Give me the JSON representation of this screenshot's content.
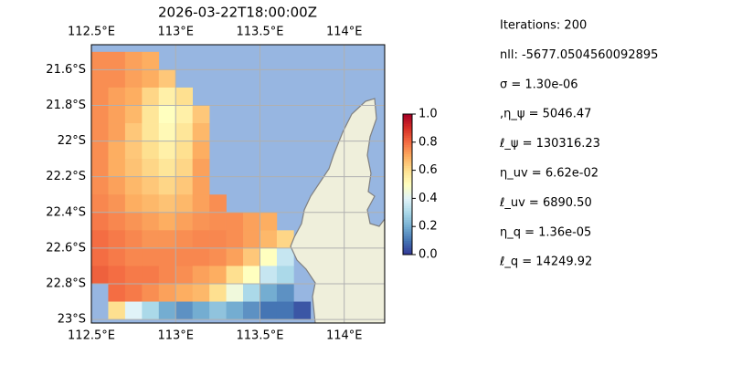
{
  "chart_data": {
    "type": "heatmap",
    "title": "2026-03-22T18:00:00Z",
    "colormap": "RdYlBu_r",
    "x": [
      112.5,
      112.6,
      112.7,
      112.8,
      112.9,
      113.0,
      113.1,
      113.2,
      113.3,
      113.4,
      113.5,
      113.6,
      113.7,
      113.8
    ],
    "y": [
      21.5,
      21.6,
      21.7,
      21.8,
      21.9,
      22.0,
      22.1,
      22.2,
      22.3,
      22.4,
      22.5,
      22.6,
      22.7,
      22.8,
      22.9
    ],
    "values": [
      [
        0.75,
        0.75,
        0.72,
        0.7,
        null,
        null,
        null,
        null,
        null,
        null,
        null,
        null,
        null,
        null
      ],
      [
        0.75,
        0.75,
        0.72,
        0.7,
        0.65,
        null,
        null,
        null,
        null,
        null,
        null,
        null,
        null,
        null
      ],
      [
        0.75,
        0.72,
        0.7,
        0.62,
        0.55,
        0.6,
        null,
        null,
        null,
        null,
        null,
        null,
        null,
        null
      ],
      [
        0.75,
        0.72,
        0.68,
        0.58,
        0.5,
        0.55,
        0.65,
        null,
        null,
        null,
        null,
        null,
        null,
        null
      ],
      [
        0.75,
        0.72,
        0.65,
        0.58,
        0.52,
        0.58,
        0.68,
        null,
        null,
        null,
        null,
        null,
        null,
        null
      ],
      [
        0.75,
        0.7,
        0.65,
        0.6,
        0.55,
        0.6,
        0.7,
        null,
        null,
        null,
        null,
        null,
        null,
        null
      ],
      [
        0.75,
        0.7,
        0.66,
        0.62,
        0.58,
        0.62,
        0.72,
        null,
        null,
        null,
        null,
        null,
        null,
        null
      ],
      [
        0.75,
        0.72,
        0.68,
        0.65,
        0.62,
        0.65,
        0.72,
        null,
        null,
        null,
        null,
        null,
        null,
        null
      ],
      [
        0.76,
        0.74,
        0.7,
        0.68,
        0.66,
        0.68,
        0.72,
        0.75,
        null,
        null,
        null,
        null,
        null,
        null
      ],
      [
        0.78,
        0.76,
        0.74,
        0.72,
        0.7,
        0.72,
        0.74,
        0.75,
        0.75,
        0.72,
        0.7,
        null,
        null,
        null
      ],
      [
        0.8,
        0.78,
        0.76,
        0.74,
        0.74,
        0.75,
        0.76,
        0.76,
        0.75,
        0.72,
        0.68,
        0.62,
        null,
        null
      ],
      [
        0.8,
        0.78,
        0.76,
        0.76,
        0.76,
        0.76,
        0.76,
        0.75,
        0.72,
        0.65,
        0.5,
        0.35,
        null,
        null
      ],
      [
        0.82,
        0.8,
        0.78,
        0.78,
        0.76,
        0.75,
        0.72,
        0.7,
        0.6,
        0.5,
        0.35,
        0.3,
        null,
        null
      ],
      [
        null,
        0.8,
        0.78,
        0.75,
        0.72,
        0.7,
        0.68,
        0.6,
        0.45,
        0.3,
        0.2,
        0.15,
        null,
        null
      ],
      [
        null,
        0.6,
        0.4,
        0.3,
        0.2,
        0.15,
        0.2,
        0.25,
        0.2,
        0.15,
        0.1,
        0.1,
        0.05,
        null
      ]
    ],
    "xlim": [
      112.5,
      114.24
    ],
    "ylim": [
      21.46,
      23.02
    ],
    "xticks": [
      {
        "value": 112.5,
        "label": "112.5°E"
      },
      {
        "value": 113,
        "label": "113°E"
      },
      {
        "value": 113.5,
        "label": "113.5°E"
      },
      {
        "value": 114,
        "label": "114°E"
      }
    ],
    "yticks": [
      {
        "value": 21.6,
        "label": "21.6°S"
      },
      {
        "value": 21.8,
        "label": "21.8°S"
      },
      {
        "value": 22,
        "label": "22°S"
      },
      {
        "value": 22.2,
        "label": "22.2°S"
      },
      {
        "value": 22.4,
        "label": "22.4°S"
      },
      {
        "value": 22.6,
        "label": "22.6°S"
      },
      {
        "value": 22.8,
        "label": "22.8°S"
      },
      {
        "value": 23,
        "label": "23°S"
      }
    ],
    "grid": true,
    "colorbar": {
      "lim": [
        0,
        1
      ],
      "ticks": [
        {
          "value": 0,
          "label": "0.0"
        },
        {
          "value": 0.2,
          "label": "0.2"
        },
        {
          "value": 0.4,
          "label": "0.4"
        },
        {
          "value": 0.6,
          "label": "0.6"
        },
        {
          "value": 0.8,
          "label": "0.8"
        },
        {
          "value": 1,
          "label": "1.0"
        }
      ]
    },
    "info": [
      "Iterations: 200",
      "nll: -5677.0504560092895",
      "σ = 1.30e-06",
      ",η_ψ = 5046.47",
      "ℓ_ψ = 130316.23",
      "η_uv = 6.62e-02",
      "ℓ_uv = 6890.50",
      "η_q = 1.36e-05",
      "ℓ_q = 14249.92"
    ]
  }
}
